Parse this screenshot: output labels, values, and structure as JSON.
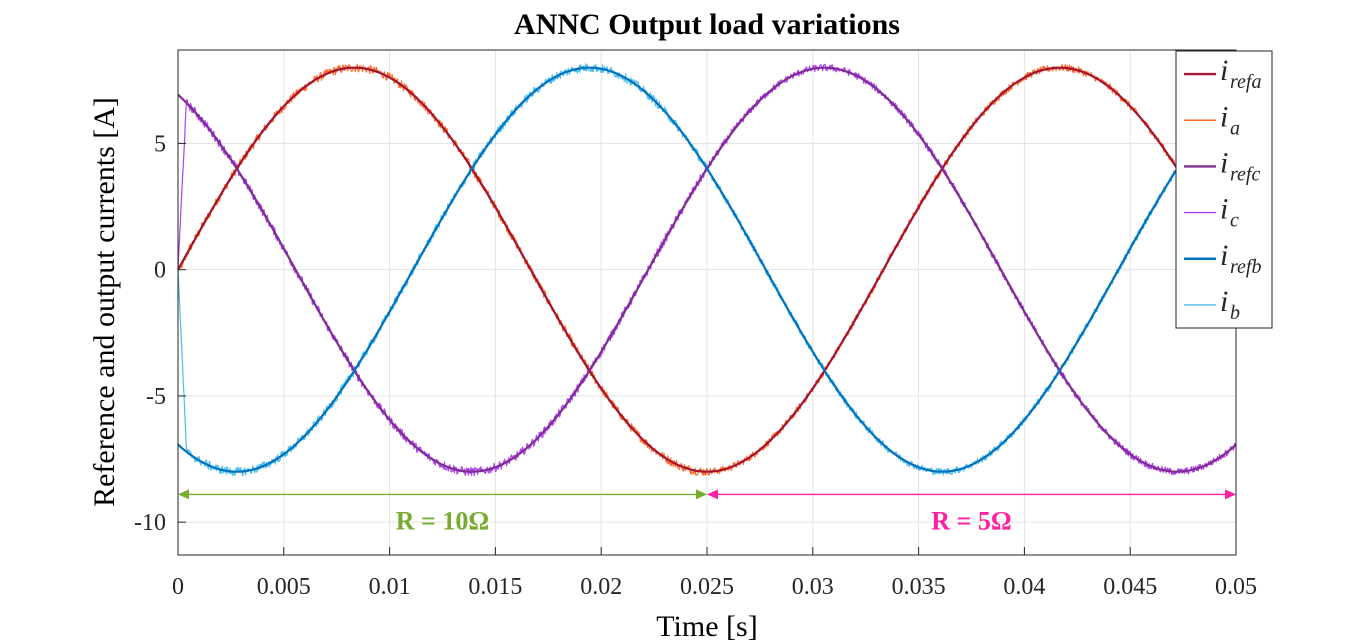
{
  "chart_data": {
    "type": "line",
    "title": "ANNC Output load variations",
    "xlabel": "Time [s]",
    "ylabel": "Reference and output currents [A]",
    "xlim": [
      0,
      0.05
    ],
    "ylim": [
      -11.3,
      8.7
    ],
    "grid": true,
    "legend_position": "top-right",
    "xticks": [
      0,
      0.005,
      0.01,
      0.015,
      0.02,
      0.025,
      0.03,
      0.035,
      0.04,
      0.045,
      0.05
    ],
    "xtick_labels": [
      "0",
      "0.005",
      "0.01",
      "0.015",
      "0.02",
      "0.025",
      "0.03",
      "0.035",
      "0.04",
      "0.045",
      "0.05"
    ],
    "yticks": [
      -10,
      -5,
      0,
      5
    ],
    "ytick_labels": [
      "-10",
      "-5",
      "0",
      "5"
    ],
    "frequency_hz": 30,
    "amplitude_a": 8,
    "series": [
      {
        "key": "irefa",
        "name": "i_refa",
        "base": "i",
        "sub": "refa",
        "color": "#A2142F",
        "phase_deg": 0,
        "kind": "reference"
      },
      {
        "key": "ia",
        "name": "i_a",
        "base": "i",
        "sub": "a",
        "color": "#FF6A2A",
        "phase_deg": 0,
        "kind": "measured"
      },
      {
        "key": "irefc",
        "name": "i_refc",
        "base": "i",
        "sub": "refc",
        "color": "#7E2F8E",
        "phase_deg": 120,
        "kind": "reference"
      },
      {
        "key": "ic",
        "name": "i_c",
        "base": "i",
        "sub": "c",
        "color": "#B041F2",
        "phase_deg": 120,
        "kind": "measured"
      },
      {
        "key": "irefb",
        "name": "i_refb",
        "base": "i",
        "sub": "refb",
        "color": "#0072BD",
        "phase_deg": -120,
        "kind": "reference"
      },
      {
        "key": "ib",
        "name": "i_b",
        "base": "i",
        "sub": "b",
        "color": "#4DBEEE",
        "phase_deg": -120,
        "kind": "measured"
      }
    ],
    "annotations": [
      {
        "key": "r10",
        "label": "R = 10Ω",
        "x_start": 0,
        "x_end": 0.025,
        "y": -8.9,
        "color": "#77AC30"
      },
      {
        "key": "r5",
        "label": "R = 5Ω",
        "x_start": 0.025,
        "x_end": 0.05,
        "y": -8.9,
        "color": "#FF1FA0"
      }
    ]
  }
}
